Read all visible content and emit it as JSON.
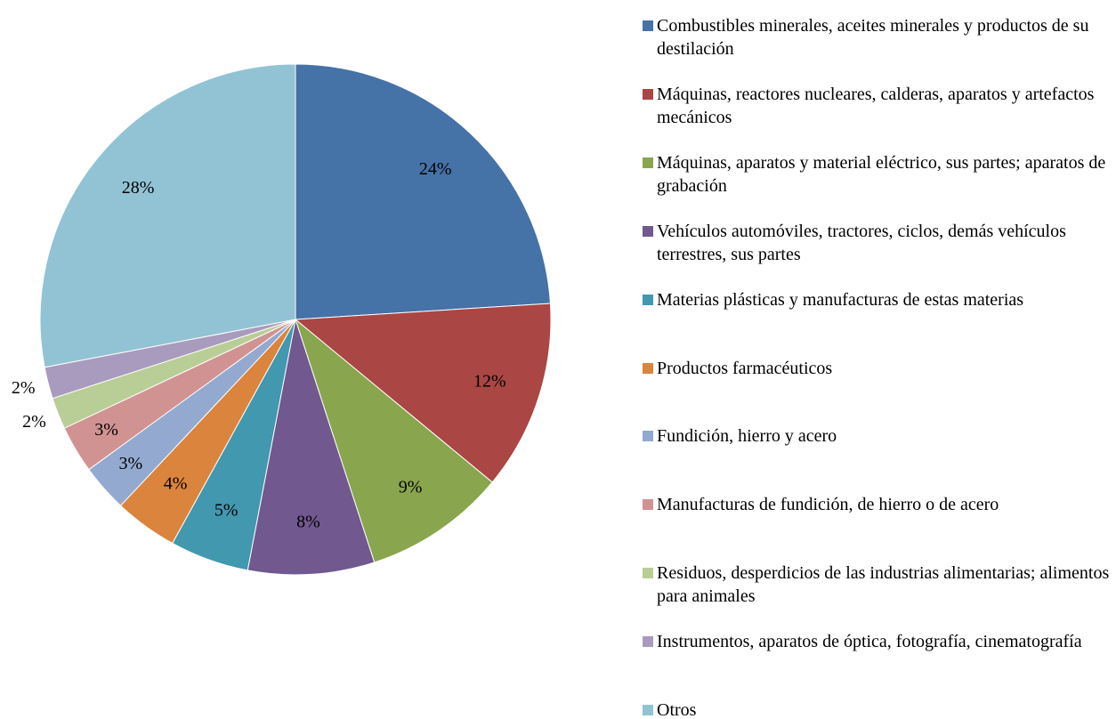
{
  "chart_data": {
    "type": "pie",
    "categories": [
      "Combustibles minerales, aceites minerales y productos de su destilación",
      "Máquinas, reactores nucleares, calderas, aparatos y artefactos mecánicos",
      "Máquinas, aparatos y material eléctrico, sus partes; aparatos de grabación",
      "Vehículos automóviles, tractores, ciclos, demás vehículos terrestres, sus partes",
      "Materias plásticas y manufacturas de estas materias",
      "Productos farmacéuticos",
      "Fundición, hierro y acero",
      "Manufacturas de fundición, de hierro o de acero",
      "Residuos, desperdicios de las industrias alimentarias; alimentos para animales",
      "Instrumentos, aparatos de óptica, fotografía, cinematografía",
      "Otros"
    ],
    "values": [
      24,
      12,
      9,
      8,
      5,
      4,
      3,
      3,
      2,
      2,
      28
    ],
    "value_labels": [
      "24%",
      "12%",
      "9%",
      "8%",
      "5%",
      "4%",
      "3%",
      "3%",
      "2%",
      "2%",
      "28%"
    ],
    "colors": [
      "#4572a7",
      "#aa4643",
      "#89a54e",
      "#71588f",
      "#4198af",
      "#db843d",
      "#93a9cf",
      "#d19392",
      "#b9cd96",
      "#a99bbd",
      "#92c3d4"
    ],
    "legend": "right"
  }
}
